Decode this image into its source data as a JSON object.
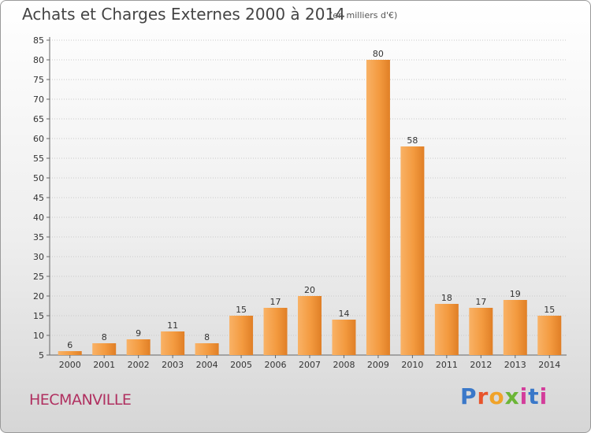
{
  "title": "Achats et Charges Externes 2000 à 2014",
  "unit_note": "(en milliers d'€)",
  "commune": "HECMANVILLE",
  "logo": {
    "text": "Proxiti"
  },
  "colors": {
    "bar_light": "#f7a34c",
    "bar_dark": "#d9701c",
    "commune_text": "#b03060"
  },
  "chart_data": {
    "type": "bar",
    "categories": [
      "2000",
      "2001",
      "2002",
      "2003",
      "2004",
      "2005",
      "2006",
      "2007",
      "2008",
      "2009",
      "2010",
      "2011",
      "2012",
      "2013",
      "2014"
    ],
    "values": [
      6,
      8,
      9,
      11,
      8,
      15,
      17,
      20,
      14,
      80,
      58,
      18,
      17,
      19,
      15
    ],
    "ylim": [
      5,
      85
    ],
    "yticks": [
      5,
      10,
      15,
      20,
      25,
      30,
      35,
      40,
      45,
      50,
      55,
      60,
      65,
      70,
      75,
      80,
      85
    ],
    "grid": true
  }
}
